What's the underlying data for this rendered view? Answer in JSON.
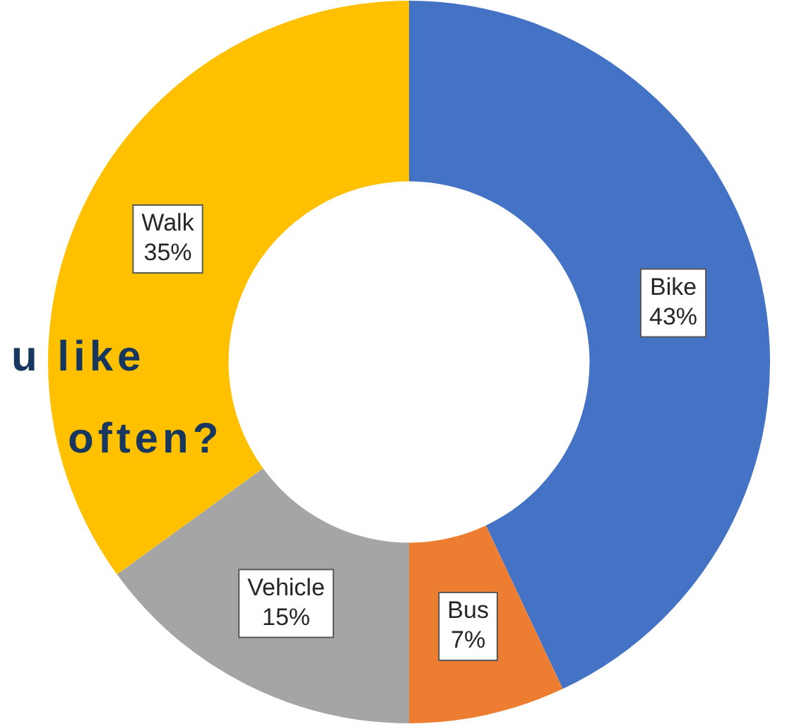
{
  "chart_data": {
    "type": "donut",
    "categories": [
      "Bike",
      "Bus",
      "Vehicle",
      "Walk"
    ],
    "values": [
      43,
      7,
      15,
      35
    ],
    "colors": [
      "#4472c4",
      "#ed7d31",
      "#a5a5a5",
      "#ffc000"
    ],
    "value_labels": [
      "43%",
      "7%",
      "15%",
      "35%"
    ],
    "legend": false,
    "annotations": [
      "u like",
      "often?"
    ]
  }
}
